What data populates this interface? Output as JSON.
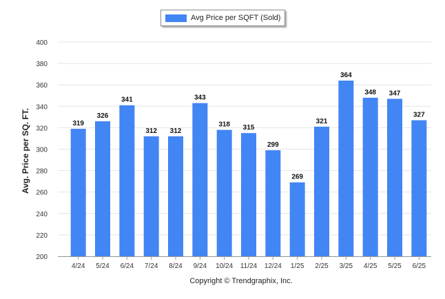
{
  "chart_data": {
    "type": "bar",
    "categories": [
      "4/24",
      "5/24",
      "6/24",
      "7/24",
      "8/24",
      "9/24",
      "10/24",
      "11/24",
      "12/24",
      "1/25",
      "2/25",
      "3/25",
      "4/25",
      "5/25",
      "6/25"
    ],
    "series": [
      {
        "name": "Avg Price per SQFT (Sold)",
        "values": [
          319,
          326,
          341,
          312,
          312,
          343,
          318,
          315,
          299,
          269,
          321,
          364,
          348,
          347,
          327
        ]
      }
    ],
    "ylabel": "Avg. Price per SQ. FT.",
    "xlabel": "",
    "ylim": [
      200,
      400
    ],
    "yticks": [
      200,
      220,
      240,
      260,
      280,
      300,
      320,
      340,
      360,
      380,
      400
    ],
    "grid": true,
    "legend": "top-center",
    "bar_color": "#4285f4",
    "data_labels": true
  },
  "legend_label": "Avg Price per SQFT (Sold)",
  "copyright": "Copyright © Trendgraphix, Inc."
}
